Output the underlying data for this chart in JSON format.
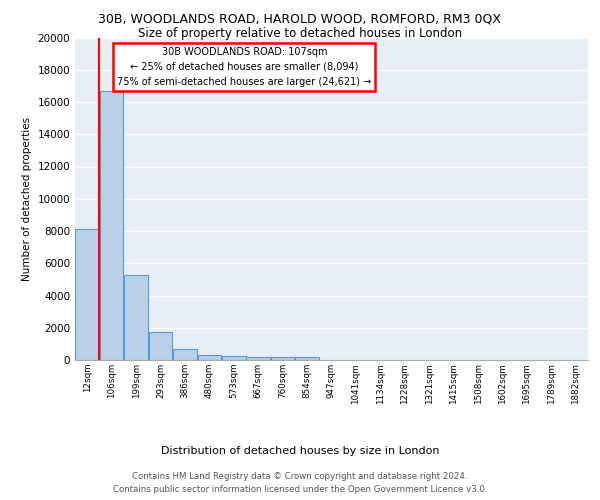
{
  "title_line1": "30B, WOODLANDS ROAD, HAROLD WOOD, ROMFORD, RM3 0QX",
  "title_line2": "Size of property relative to detached houses in London",
  "xlabel": "Distribution of detached houses by size in London",
  "ylabel": "Number of detached properties",
  "bin_labels": [
    "12sqm",
    "106sqm",
    "199sqm",
    "293sqm",
    "386sqm",
    "480sqm",
    "573sqm",
    "667sqm",
    "760sqm",
    "854sqm",
    "947sqm",
    "1041sqm",
    "1134sqm",
    "1228sqm",
    "1321sqm",
    "1415sqm",
    "1508sqm",
    "1602sqm",
    "1695sqm",
    "1789sqm",
    "1882sqm"
  ],
  "bin_values": [
    8094,
    16700,
    5300,
    1750,
    700,
    300,
    220,
    190,
    175,
    160,
    0,
    0,
    0,
    0,
    0,
    0,
    0,
    0,
    0,
    0,
    0
  ],
  "bar_color": "#b8d0ea",
  "bar_edge_color": "#5b9bd5",
  "marker_color": "red",
  "annotation_line1": "30B WOODLANDS ROAD: 107sqm",
  "annotation_line2": "← 25% of detached houses are smaller (8,094)",
  "annotation_line3": "75% of semi-detached houses are larger (24,621) →",
  "annotation_box_color": "white",
  "annotation_box_edge": "red",
  "footer_line1": "Contains HM Land Registry data © Crown copyright and database right 2024.",
  "footer_line2": "Contains public sector information licensed under the Open Government Licence v3.0.",
  "ylim": [
    0,
    20000
  ],
  "background_color": "#e8eef8"
}
